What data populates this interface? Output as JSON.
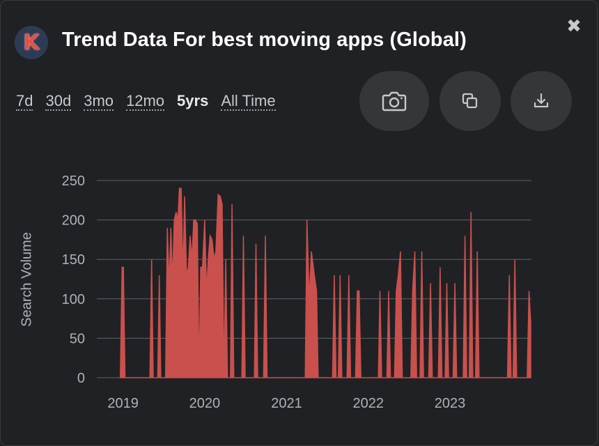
{
  "header": {
    "logo_letter": "K",
    "title": "Trend Data For best moving apps (Global)",
    "close_glyph": "✖"
  },
  "ranges": [
    {
      "label": "7d",
      "active": false
    },
    {
      "label": "30d",
      "active": false
    },
    {
      "label": "3mo",
      "active": false
    },
    {
      "label": "12mo",
      "active": false
    },
    {
      "label": "5yrs",
      "active": true
    },
    {
      "label": "All Time",
      "active": false
    }
  ],
  "actions": [
    {
      "icon": "camera-icon"
    },
    {
      "icon": "copy-icon"
    },
    {
      "icon": "download-icon"
    }
  ],
  "colors": {
    "background": "#202124",
    "series": "#c9504d",
    "grid": "#5f6368",
    "logo_bg": "#2f3b55",
    "logo_letter": "#e8503f"
  },
  "chart_data": {
    "type": "area",
    "ylabel": "Search Volume",
    "ylim": [
      0,
      250
    ],
    "yticks": [
      0,
      50,
      100,
      150,
      200,
      250
    ],
    "xticks": [
      "2019",
      "2020",
      "2021",
      "2022",
      "2023"
    ],
    "xlim": [
      "2018-11-01",
      "2023-12-31"
    ],
    "grid": true,
    "series": [
      {
        "points": [
          [
            "2018-12-20",
            0
          ],
          [
            "2018-12-28",
            140
          ],
          [
            "2019-01-03",
            140
          ],
          [
            "2019-01-10",
            0
          ],
          [
            "2019-05-01",
            0
          ],
          [
            "2019-05-09",
            150
          ],
          [
            "2019-05-16",
            0
          ],
          [
            "2019-06-05",
            0
          ],
          [
            "2019-06-12",
            130
          ],
          [
            "2019-06-19",
            0
          ],
          [
            "2019-07-10",
            0
          ],
          [
            "2019-07-18",
            190
          ],
          [
            "2019-07-26",
            120
          ],
          [
            "2019-08-03",
            190
          ],
          [
            "2019-08-10",
            120
          ],
          [
            "2019-08-18",
            200
          ],
          [
            "2019-08-26",
            210
          ],
          [
            "2019-09-03",
            200
          ],
          [
            "2019-09-10",
            240
          ],
          [
            "2019-09-18",
            240
          ],
          [
            "2019-09-26",
            130
          ],
          [
            "2019-10-03",
            230
          ],
          [
            "2019-10-12",
            130
          ],
          [
            "2019-10-20",
            140
          ],
          [
            "2019-10-28",
            180
          ],
          [
            "2019-11-05",
            150
          ],
          [
            "2019-11-13",
            200
          ],
          [
            "2019-11-21",
            200
          ],
          [
            "2019-11-29",
            195
          ],
          [
            "2019-12-07",
            0
          ],
          [
            "2019-12-14",
            140
          ],
          [
            "2019-12-22",
            140
          ],
          [
            "2020-01-01",
            200
          ],
          [
            "2020-01-09",
            110
          ],
          [
            "2020-01-17",
            150
          ],
          [
            "2020-01-25",
            180
          ],
          [
            "2020-02-03",
            175
          ],
          [
            "2020-02-12",
            150
          ],
          [
            "2020-02-20",
            160
          ],
          [
            "2020-03-01",
            232
          ],
          [
            "2020-03-10",
            230
          ],
          [
            "2020-03-19",
            220
          ],
          [
            "2020-03-27",
            0
          ],
          [
            "2020-04-04",
            150
          ],
          [
            "2020-04-12",
            0
          ],
          [
            "2020-04-25",
            0
          ],
          [
            "2020-05-02",
            220
          ],
          [
            "2020-05-10",
            0
          ],
          [
            "2020-06-15",
            0
          ],
          [
            "2020-06-22",
            180
          ],
          [
            "2020-06-30",
            0
          ],
          [
            "2020-08-10",
            0
          ],
          [
            "2020-08-17",
            170
          ],
          [
            "2020-08-25",
            0
          ],
          [
            "2020-09-20",
            0
          ],
          [
            "2020-09-28",
            180
          ],
          [
            "2020-10-06",
            0
          ],
          [
            "2021-03-25",
            0
          ],
          [
            "2021-04-02",
            200
          ],
          [
            "2021-04-12",
            100
          ],
          [
            "2021-04-22",
            160
          ],
          [
            "2021-05-05",
            130
          ],
          [
            "2021-05-15",
            110
          ],
          [
            "2021-05-22",
            0
          ],
          [
            "2021-07-25",
            0
          ],
          [
            "2021-08-02",
            130
          ],
          [
            "2021-08-10",
            0
          ],
          [
            "2021-08-20",
            0
          ],
          [
            "2021-08-28",
            130
          ],
          [
            "2021-09-05",
            0
          ],
          [
            "2021-09-28",
            0
          ],
          [
            "2021-10-06",
            130
          ],
          [
            "2021-10-14",
            0
          ],
          [
            "2021-11-05",
            0
          ],
          [
            "2021-11-13",
            110
          ],
          [
            "2021-11-21",
            110
          ],
          [
            "2021-11-29",
            0
          ],
          [
            "2022-02-15",
            0
          ],
          [
            "2022-02-22",
            110
          ],
          [
            "2022-03-02",
            0
          ],
          [
            "2022-03-25",
            0
          ],
          [
            "2022-04-02",
            110
          ],
          [
            "2022-04-10",
            0
          ],
          [
            "2022-04-28",
            0
          ],
          [
            "2022-05-06",
            110
          ],
          [
            "2022-05-15",
            130
          ],
          [
            "2022-05-25",
            160
          ],
          [
            "2022-06-02",
            0
          ],
          [
            "2022-07-10",
            0
          ],
          [
            "2022-07-18",
            110
          ],
          [
            "2022-07-28",
            160
          ],
          [
            "2022-08-05",
            0
          ],
          [
            "2022-08-20",
            0
          ],
          [
            "2022-08-28",
            160
          ],
          [
            "2022-09-05",
            0
          ],
          [
            "2022-09-28",
            0
          ],
          [
            "2022-10-06",
            120
          ],
          [
            "2022-10-14",
            0
          ],
          [
            "2022-11-10",
            0
          ],
          [
            "2022-11-18",
            140
          ],
          [
            "2022-11-26",
            0
          ],
          [
            "2022-12-10",
            0
          ],
          [
            "2022-12-18",
            120
          ],
          [
            "2022-12-26",
            0
          ],
          [
            "2023-01-15",
            0
          ],
          [
            "2023-01-23",
            120
          ],
          [
            "2023-01-31",
            0
          ],
          [
            "2023-03-01",
            0
          ],
          [
            "2023-03-09",
            180
          ],
          [
            "2023-03-17",
            0
          ],
          [
            "2023-03-28",
            0
          ],
          [
            "2023-04-05",
            210
          ],
          [
            "2023-04-13",
            0
          ],
          [
            "2023-04-25",
            0
          ],
          [
            "2023-05-03",
            160
          ],
          [
            "2023-05-11",
            0
          ],
          [
            "2023-09-15",
            0
          ],
          [
            "2023-09-23",
            130
          ],
          [
            "2023-10-01",
            0
          ],
          [
            "2023-10-10",
            0
          ],
          [
            "2023-10-18",
            150
          ],
          [
            "2023-10-26",
            0
          ],
          [
            "2023-12-12",
            0
          ],
          [
            "2023-12-20",
            110
          ],
          [
            "2023-12-28",
            70
          ]
        ]
      }
    ]
  }
}
